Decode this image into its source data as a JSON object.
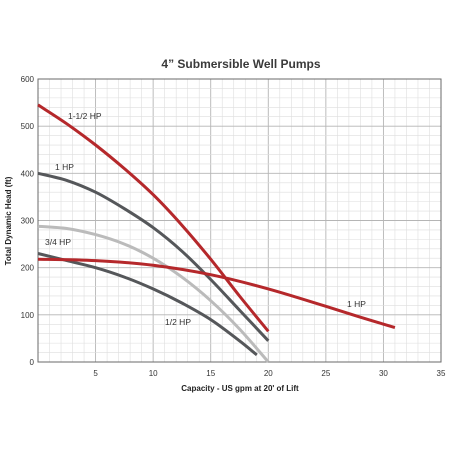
{
  "chart_data": {
    "type": "line",
    "title": "4” Submersible Well Pumps",
    "xlabel": "Capacity - US gpm at 20' of Lift",
    "ylabel": "Total Dynamic Head (ft)",
    "xlim": [
      0,
      35
    ],
    "ylim": [
      0,
      600
    ],
    "x_ticks": [
      5,
      10,
      15,
      20,
      25,
      30,
      35
    ],
    "y_ticks": [
      0,
      100,
      200,
      300,
      400,
      500,
      600
    ],
    "grid": true,
    "series": [
      {
        "name": "1-1/2 HP",
        "color": "#b5282b",
        "x": [
          0,
          2.5,
          5,
          7.5,
          10,
          12.5,
          15,
          17.5,
          20
        ],
        "y": [
          545,
          505,
          460,
          410,
          355,
          290,
          218,
          140,
          65
        ]
      },
      {
        "name": "1 HP",
        "color": "#55575a",
        "x": [
          0,
          2.5,
          5,
          7.5,
          10,
          12.5,
          15,
          17.5,
          20
        ],
        "y": [
          400,
          385,
          360,
          325,
          285,
          235,
          175,
          110,
          45
        ]
      },
      {
        "name": "3/4 HP",
        "color": "#bbbbbb",
        "x": [
          0,
          2.5,
          5,
          7.5,
          10,
          12.5,
          15,
          17.5,
          20
        ],
        "y": [
          288,
          283,
          270,
          250,
          220,
          180,
          130,
          70,
          0
        ]
      },
      {
        "name": "1/2 HP",
        "color": "#55575a",
        "x": [
          0,
          2.5,
          5,
          7.5,
          10,
          12.5,
          15,
          17.5,
          19
        ],
        "y": [
          230,
          215,
          200,
          180,
          155,
          125,
          90,
          45,
          15
        ]
      },
      {
        "name": "1 HP",
        "color": "#b5282b",
        "x": [
          0,
          5,
          10,
          15,
          20,
          25,
          28,
          31
        ],
        "y": [
          218,
          215,
          205,
          185,
          155,
          118,
          95,
          73
        ]
      }
    ],
    "series_labels": [
      "1-1/2 HP",
      "1 HP",
      "3/4 HP",
      "1/2 HP",
      "1 HP"
    ]
  }
}
